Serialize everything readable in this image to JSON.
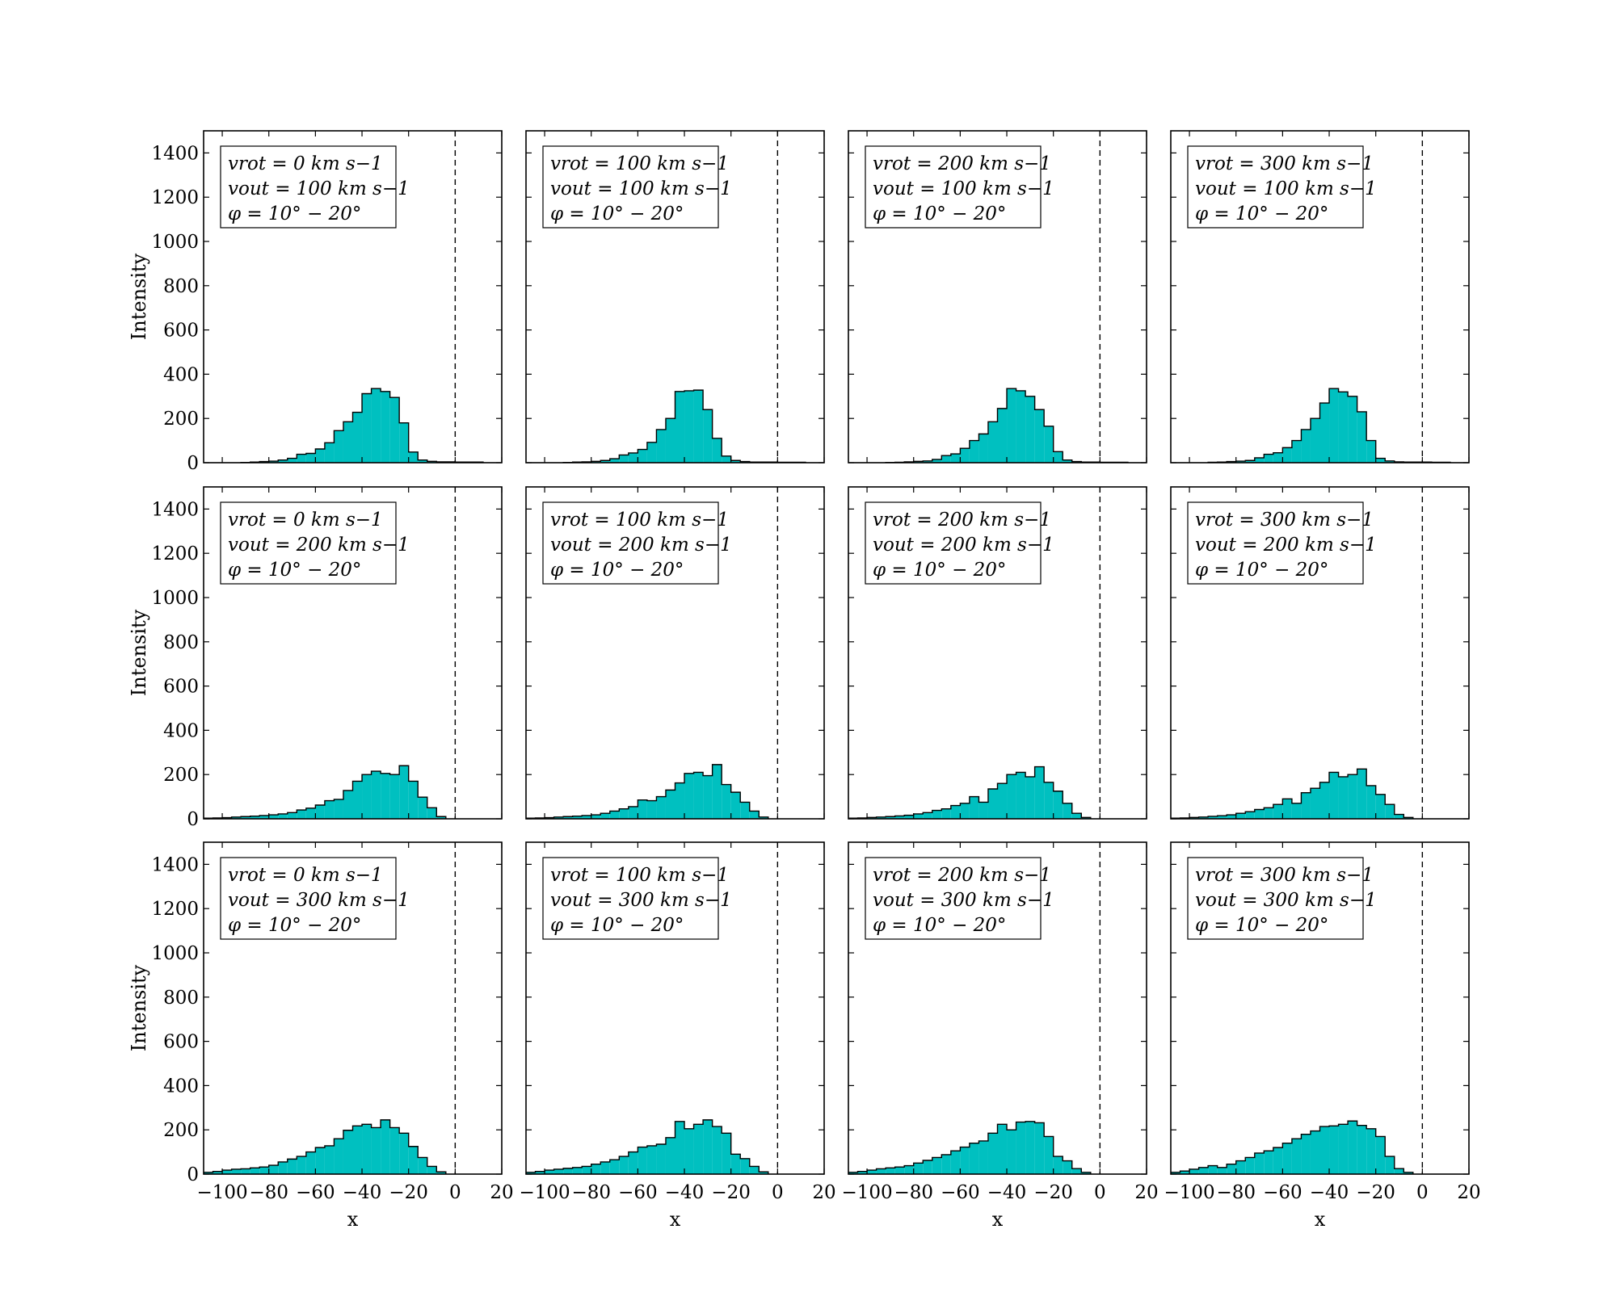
{
  "figure": {
    "ylabel": "Intensity",
    "xlabel": "x",
    "rows": 3,
    "cols": 4,
    "bar_color": "#00c0c0",
    "edge_color": "#000000",
    "xlim": [
      -108,
      20
    ],
    "ylim": [
      0,
      1500
    ],
    "xticks": [
      -100,
      -80,
      -60,
      -40,
      -20,
      0,
      20
    ],
    "yticks": [
      0,
      200,
      400,
      600,
      800,
      1000,
      1200,
      1400
    ],
    "vline_x": 0
  },
  "chart_data": [
    {
      "type": "histogram",
      "legend": [
        "vrot = 0 km s−1",
        "vout = 100 km s−1",
        "φ = 10° − 20°"
      ],
      "bin_width": 4,
      "bins": [
        [
          -92,
          1
        ],
        [
          -88,
          3
        ],
        [
          -84,
          5
        ],
        [
          -80,
          7
        ],
        [
          -76,
          12
        ],
        [
          -72,
          20
        ],
        [
          -68,
          38
        ],
        [
          -64,
          42
        ],
        [
          -60,
          62
        ],
        [
          -56,
          90
        ],
        [
          -52,
          145
        ],
        [
          -48,
          185
        ],
        [
          -44,
          228
        ],
        [
          -40,
          312
        ],
        [
          -36,
          335
        ],
        [
          -32,
          322
        ],
        [
          -28,
          295
        ],
        [
          -24,
          180
        ],
        [
          -20,
          48
        ],
        [
          -16,
          12
        ],
        [
          -12,
          6
        ],
        [
          -8,
          4
        ],
        [
          -4,
          4
        ],
        [
          0,
          3
        ],
        [
          4,
          3
        ],
        [
          8,
          3
        ]
      ]
    },
    {
      "type": "histogram",
      "legend": [
        "vrot = 100 km s−1",
        "vout = 100 km s−1",
        "φ = 10° − 20°"
      ],
      "bin_width": 4,
      "bins": [
        [
          -92,
          1
        ],
        [
          -88,
          3
        ],
        [
          -84,
          4
        ],
        [
          -80,
          6
        ],
        [
          -76,
          10
        ],
        [
          -72,
          18
        ],
        [
          -68,
          35
        ],
        [
          -64,
          44
        ],
        [
          -60,
          60
        ],
        [
          -56,
          92
        ],
        [
          -52,
          150
        ],
        [
          -48,
          200
        ],
        [
          -44,
          322
        ],
        [
          -40,
          325
        ],
        [
          -36,
          328
        ],
        [
          -32,
          240
        ],
        [
          -28,
          110
        ],
        [
          -24,
          30
        ],
        [
          -20,
          10
        ],
        [
          -16,
          5
        ],
        [
          -12,
          3
        ],
        [
          -8,
          3
        ],
        [
          -4,
          3
        ],
        [
          0,
          2
        ],
        [
          4,
          2
        ],
        [
          8,
          2
        ]
      ]
    },
    {
      "type": "histogram",
      "legend": [
        "vrot = 200 km s−1",
        "vout = 100 km s−1",
        "φ = 10° − 20°"
      ],
      "bin_width": 4,
      "bins": [
        [
          -92,
          1
        ],
        [
          -88,
          2
        ],
        [
          -84,
          4
        ],
        [
          -80,
          6
        ],
        [
          -76,
          8
        ],
        [
          -72,
          15
        ],
        [
          -68,
          32
        ],
        [
          -64,
          40
        ],
        [
          -60,
          65
        ],
        [
          -56,
          100
        ],
        [
          -52,
          130
        ],
        [
          -48,
          185
        ],
        [
          -44,
          245
        ],
        [
          -40,
          335
        ],
        [
          -36,
          325
        ],
        [
          -32,
          300
        ],
        [
          -28,
          240
        ],
        [
          -24,
          165
        ],
        [
          -20,
          50
        ],
        [
          -16,
          12
        ],
        [
          -12,
          5
        ],
        [
          -8,
          3
        ],
        [
          -4,
          3
        ],
        [
          0,
          2
        ],
        [
          4,
          2
        ],
        [
          8,
          2
        ]
      ]
    },
    {
      "type": "histogram",
      "legend": [
        "vrot = 300 km s−1",
        "vout = 100 km s−1",
        "φ = 10° − 20°"
      ],
      "bin_width": 4,
      "bins": [
        [
          -92,
          2
        ],
        [
          -88,
          3
        ],
        [
          -84,
          5
        ],
        [
          -80,
          7
        ],
        [
          -76,
          10
        ],
        [
          -72,
          22
        ],
        [
          -68,
          38
        ],
        [
          -64,
          45
        ],
        [
          -60,
          68
        ],
        [
          -56,
          100
        ],
        [
          -52,
          150
        ],
        [
          -48,
          200
        ],
        [
          -44,
          270
        ],
        [
          -40,
          335
        ],
        [
          -36,
          320
        ],
        [
          -32,
          300
        ],
        [
          -28,
          230
        ],
        [
          -24,
          100
        ],
        [
          -20,
          20
        ],
        [
          -16,
          8
        ],
        [
          -12,
          4
        ],
        [
          -8,
          3
        ],
        [
          -4,
          3
        ],
        [
          0,
          3
        ],
        [
          4,
          2
        ],
        [
          8,
          2
        ]
      ]
    },
    {
      "type": "histogram",
      "legend": [
        "vrot = 0 km s−1",
        "vout = 200 km s−1",
        "φ = 10° − 20°"
      ],
      "bin_width": 4,
      "bins": [
        [
          -108,
          3
        ],
        [
          -104,
          4
        ],
        [
          -100,
          5
        ],
        [
          -96,
          8
        ],
        [
          -92,
          10
        ],
        [
          -88,
          12
        ],
        [
          -84,
          15
        ],
        [
          -80,
          18
        ],
        [
          -76,
          22
        ],
        [
          -72,
          28
        ],
        [
          -68,
          40
        ],
        [
          -64,
          48
        ],
        [
          -60,
          62
        ],
        [
          -56,
          82
        ],
        [
          -52,
          88
        ],
        [
          -48,
          128
        ],
        [
          -44,
          170
        ],
        [
          -40,
          200
        ],
        [
          -36,
          215
        ],
        [
          -32,
          205
        ],
        [
          -28,
          200
        ],
        [
          -24,
          240
        ],
        [
          -20,
          170
        ],
        [
          -16,
          98
        ],
        [
          -12,
          50
        ],
        [
          -8,
          10
        ]
      ]
    },
    {
      "type": "histogram",
      "legend": [
        "vrot = 100 km s−1",
        "vout = 200 km s−1",
        "φ = 10° − 20°"
      ],
      "bin_width": 4,
      "bins": [
        [
          -108,
          3
        ],
        [
          -104,
          4
        ],
        [
          -100,
          5
        ],
        [
          -96,
          8
        ],
        [
          -92,
          10
        ],
        [
          -88,
          12
        ],
        [
          -84,
          15
        ],
        [
          -80,
          18
        ],
        [
          -76,
          25
        ],
        [
          -72,
          35
        ],
        [
          -68,
          45
        ],
        [
          -64,
          55
        ],
        [
          -60,
          85
        ],
        [
          -56,
          82
        ],
        [
          -52,
          100
        ],
        [
          -48,
          130
        ],
        [
          -44,
          162
        ],
        [
          -40,
          205
        ],
        [
          -36,
          210
        ],
        [
          -32,
          195
        ],
        [
          -28,
          245
        ],
        [
          -24,
          155
        ],
        [
          -20,
          120
        ],
        [
          -16,
          75
        ],
        [
          -12,
          35
        ],
        [
          -8,
          8
        ]
      ]
    },
    {
      "type": "histogram",
      "legend": [
        "vrot = 200 km s−1",
        "vout = 200 km s−1",
        "φ = 10° − 20°"
      ],
      "bin_width": 4,
      "bins": [
        [
          -108,
          3
        ],
        [
          -104,
          4
        ],
        [
          -100,
          6
        ],
        [
          -96,
          8
        ],
        [
          -92,
          10
        ],
        [
          -88,
          13
        ],
        [
          -84,
          16
        ],
        [
          -80,
          22
        ],
        [
          -76,
          28
        ],
        [
          -72,
          38
        ],
        [
          -68,
          45
        ],
        [
          -64,
          60
        ],
        [
          -60,
          70
        ],
        [
          -56,
          100
        ],
        [
          -52,
          75
        ],
        [
          -48,
          135
        ],
        [
          -44,
          160
        ],
        [
          -40,
          200
        ],
        [
          -36,
          210
        ],
        [
          -32,
          190
        ],
        [
          -28,
          235
        ],
        [
          -24,
          165
        ],
        [
          -20,
          125
        ],
        [
          -16,
          70
        ],
        [
          -12,
          25
        ],
        [
          -8,
          6
        ]
      ]
    },
    {
      "type": "histogram",
      "legend": [
        "vrot = 300 km s−1",
        "vout = 200 km s−1",
        "φ = 10° − 20°"
      ],
      "bin_width": 4,
      "bins": [
        [
          -108,
          3
        ],
        [
          -104,
          4
        ],
        [
          -100,
          6
        ],
        [
          -96,
          8
        ],
        [
          -92,
          11
        ],
        [
          -88,
          14
        ],
        [
          -84,
          18
        ],
        [
          -80,
          25
        ],
        [
          -76,
          32
        ],
        [
          -72,
          42
        ],
        [
          -68,
          50
        ],
        [
          -64,
          65
        ],
        [
          -60,
          90
        ],
        [
          -56,
          70
        ],
        [
          -52,
          118
        ],
        [
          -48,
          138
        ],
        [
          -44,
          165
        ],
        [
          -40,
          210
        ],
        [
          -36,
          190
        ],
        [
          -32,
          200
        ],
        [
          -28,
          225
        ],
        [
          -24,
          150
        ],
        [
          -20,
          110
        ],
        [
          -16,
          65
        ],
        [
          -12,
          20
        ],
        [
          -8,
          6
        ]
      ]
    },
    {
      "type": "histogram",
      "legend": [
        "vrot = 0 km s−1",
        "vout = 300 km s−1",
        "φ = 10° − 20°"
      ],
      "bin_width": 4,
      "bins": [
        [
          -108,
          8
        ],
        [
          -104,
          12
        ],
        [
          -100,
          18
        ],
        [
          -96,
          22
        ],
        [
          -92,
          24
        ],
        [
          -88,
          28
        ],
        [
          -84,
          32
        ],
        [
          -80,
          40
        ],
        [
          -76,
          55
        ],
        [
          -72,
          68
        ],
        [
          -68,
          80
        ],
        [
          -64,
          100
        ],
        [
          -60,
          120
        ],
        [
          -56,
          128
        ],
        [
          -52,
          160
        ],
        [
          -48,
          198
        ],
        [
          -44,
          218
        ],
        [
          -40,
          225
        ],
        [
          -36,
          210
        ],
        [
          -32,
          245
        ],
        [
          -28,
          210
        ],
        [
          -24,
          185
        ],
        [
          -20,
          125
        ],
        [
          -16,
          75
        ],
        [
          -12,
          35
        ],
        [
          -8,
          10
        ]
      ]
    },
    {
      "type": "histogram",
      "legend": [
        "vrot = 100 km s−1",
        "vout = 300 km s−1",
        "φ = 10° − 20°"
      ],
      "bin_width": 4,
      "bins": [
        [
          -108,
          8
        ],
        [
          -104,
          12
        ],
        [
          -100,
          18
        ],
        [
          -96,
          22
        ],
        [
          -92,
          26
        ],
        [
          -88,
          30
        ],
        [
          -84,
          35
        ],
        [
          -80,
          45
        ],
        [
          -76,
          55
        ],
        [
          -72,
          65
        ],
        [
          -68,
          80
        ],
        [
          -64,
          100
        ],
        [
          -60,
          122
        ],
        [
          -56,
          128
        ],
        [
          -52,
          135
        ],
        [
          -48,
          165
        ],
        [
          -44,
          238
        ],
        [
          -40,
          205
        ],
        [
          -36,
          225
        ],
        [
          -32,
          245
        ],
        [
          -28,
          215
        ],
        [
          -24,
          185
        ],
        [
          -20,
          90
        ],
        [
          -16,
          70
        ],
        [
          -12,
          35
        ],
        [
          -8,
          10
        ]
      ]
    },
    {
      "type": "histogram",
      "legend": [
        "vrot = 200 km s−1",
        "vout = 300 km s−1",
        "φ = 10° − 20°"
      ],
      "bin_width": 4,
      "bins": [
        [
          -108,
          8
        ],
        [
          -104,
          12
        ],
        [
          -100,
          18
        ],
        [
          -96,
          24
        ],
        [
          -92,
          28
        ],
        [
          -88,
          32
        ],
        [
          -84,
          38
        ],
        [
          -80,
          50
        ],
        [
          -76,
          62
        ],
        [
          -72,
          75
        ],
        [
          -68,
          88
        ],
        [
          -64,
          105
        ],
        [
          -60,
          122
        ],
        [
          -56,
          140
        ],
        [
          -52,
          150
        ],
        [
          -48,
          185
        ],
        [
          -44,
          225
        ],
        [
          -40,
          200
        ],
        [
          -36,
          235
        ],
        [
          -32,
          238
        ],
        [
          -28,
          232
        ],
        [
          -24,
          170
        ],
        [
          -20,
          80
        ],
        [
          -16,
          60
        ],
        [
          -12,
          25
        ],
        [
          -8,
          8
        ]
      ]
    },
    {
      "type": "histogram",
      "legend": [
        "vrot = 300 km s−1",
        "vout = 300 km s−1",
        "φ = 10° − 20°"
      ],
      "bin_width": 4,
      "bins": [
        [
          -108,
          8
        ],
        [
          -104,
          14
        ],
        [
          -100,
          22
        ],
        [
          -96,
          30
        ],
        [
          -92,
          38
        ],
        [
          -88,
          30
        ],
        [
          -84,
          45
        ],
        [
          -80,
          60
        ],
        [
          -76,
          75
        ],
        [
          -72,
          95
        ],
        [
          -68,
          105
        ],
        [
          -64,
          120
        ],
        [
          -60,
          140
        ],
        [
          -56,
          160
        ],
        [
          -52,
          180
        ],
        [
          -48,
          195
        ],
        [
          -44,
          215
        ],
        [
          -40,
          218
        ],
        [
          -36,
          225
        ],
        [
          -32,
          240
        ],
        [
          -28,
          220
        ],
        [
          -24,
          205
        ],
        [
          -20,
          170
        ],
        [
          -16,
          80
        ],
        [
          -12,
          25
        ],
        [
          -8,
          8
        ]
      ]
    }
  ]
}
